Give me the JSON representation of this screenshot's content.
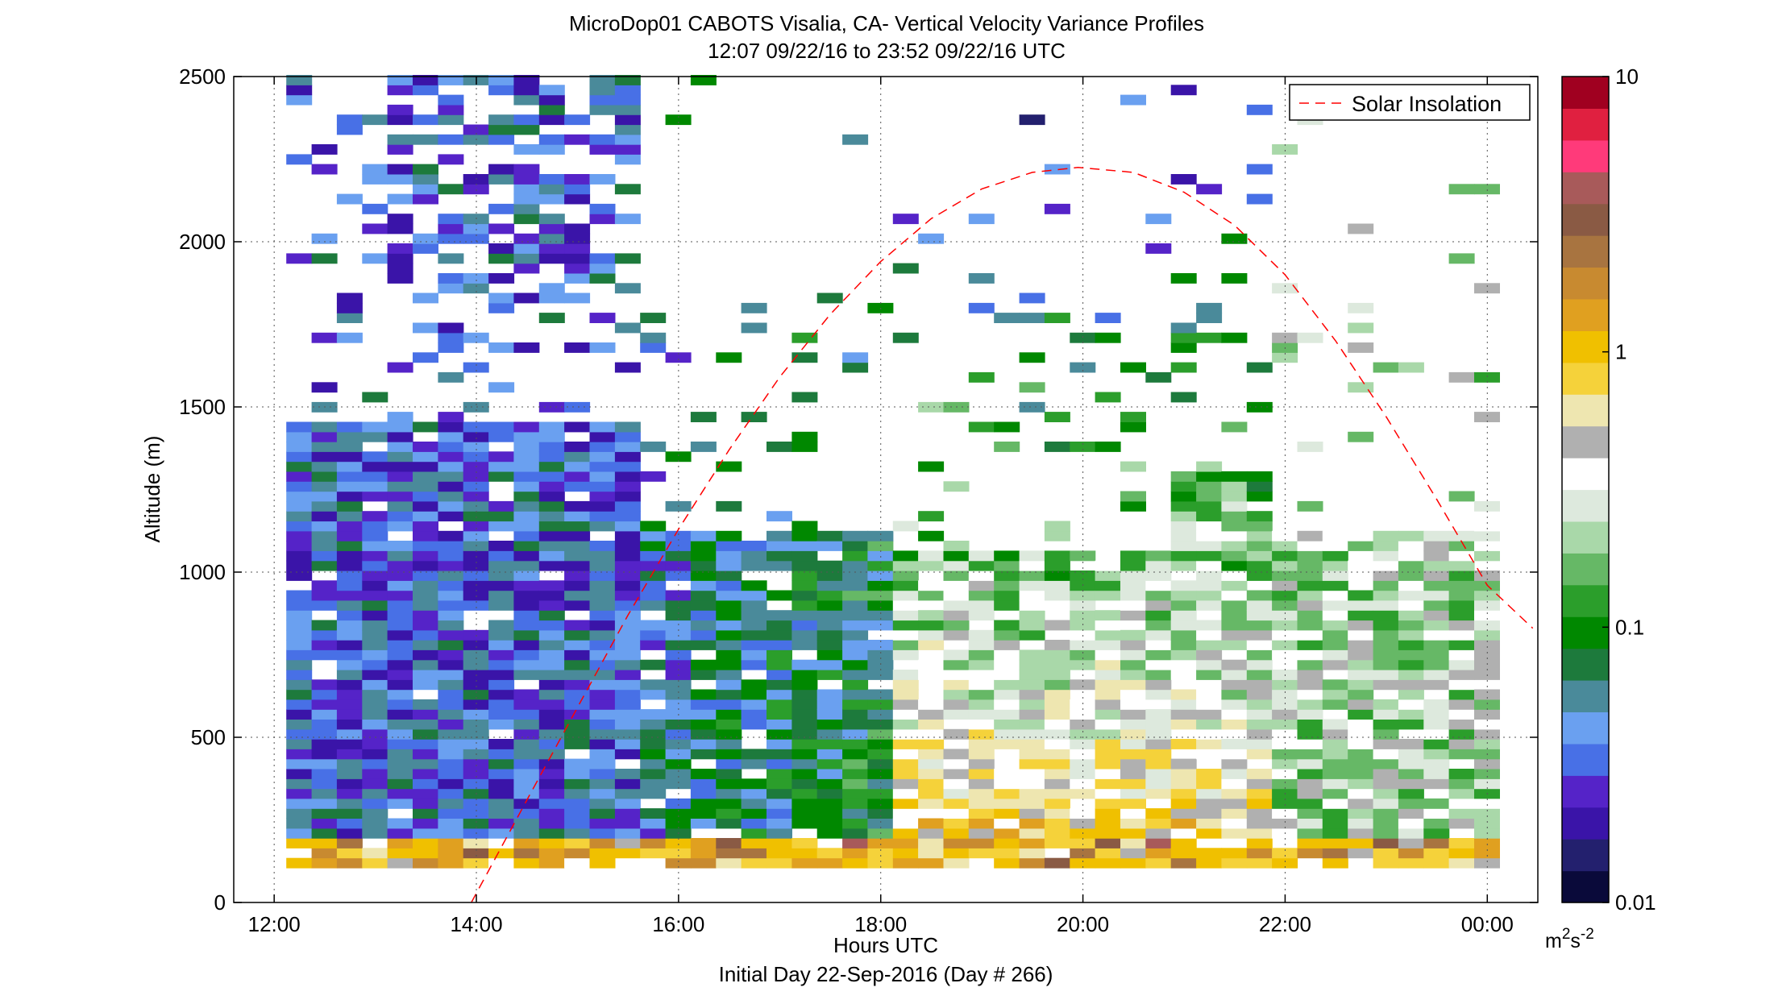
{
  "chart_data": {
    "type": "heatmap",
    "title": "MicroDop01 CABOTS Visalia, CA- Vertical Velocity Variance Profiles",
    "subtitle": "12:07 09/22/16 to 23:52 09/22/16  UTC",
    "xlabel": "Hours UTC",
    "xlabel2": "Initial Day 22-Sep-2016 (Day # 266)",
    "ylabel": "Altitude (m)",
    "x_ticks": [
      "12:00",
      "14:00",
      "16:00",
      "18:00",
      "20:00",
      "22:00",
      "00:00"
    ],
    "y_ticks": [
      "0",
      "500",
      "1000",
      "1500",
      "2000",
      "2500"
    ],
    "xlim_hours": [
      11.6,
      24.5
    ],
    "ylim": [
      0,
      2500
    ],
    "grid": true,
    "legend": {
      "position": "top-right",
      "entries": [
        {
          "name": "Solar Insolation",
          "style": "dashed",
          "color": "#ff0000"
        }
      ]
    },
    "colorbar": {
      "scale": "log",
      "ticks": [
        "0.01",
        "0.1",
        "1",
        "10"
      ],
      "units_base": "m",
      "units_exp1": "2",
      "units_mid": "s",
      "units_exp2": "-2",
      "colors": [
        "#0a0a3a",
        "#23206e",
        "#3a14a8",
        "#5523c8",
        "#4870e6",
        "#6aa0f0",
        "#4a8a9a",
        "#1d7a3c",
        "#008800",
        "#2b9e2b",
        "#66b866",
        "#a9d8a9",
        "#dde9dd",
        "#ffffff",
        "#b0b0b0",
        "#eee6b0",
        "#f5d23a",
        "#f0c000",
        "#e0a020",
        "#c88a30",
        "#a87440",
        "#8a5a44",
        "#a85a5a",
        "#ff3a7a",
        "#e02040",
        "#a00020"
      ]
    },
    "time_range_hours": [
      12.12,
      23.87
    ],
    "column_step_hours": 0.25,
    "solar_insolation": {
      "name": "Solar Insolation",
      "peak_hour": 19.95,
      "peak_altitude": 2225,
      "zero_hour": 13.95,
      "points_hours": [
        13.95,
        14.5,
        15.0,
        15.5,
        16.0,
        16.5,
        17.0,
        17.5,
        18.0,
        18.5,
        19.0,
        19.5,
        19.95,
        20.5,
        21.0,
        21.5,
        22.0,
        22.5,
        23.0,
        23.5,
        24.0,
        24.45
      ],
      "points_alt": [
        0,
        310,
        590,
        870,
        1130,
        1370,
        1590,
        1780,
        1940,
        2070,
        2160,
        2210,
        2225,
        2210,
        2150,
        2050,
        1900,
        1700,
        1470,
        1220,
        960,
        830
      ]
    }
  }
}
